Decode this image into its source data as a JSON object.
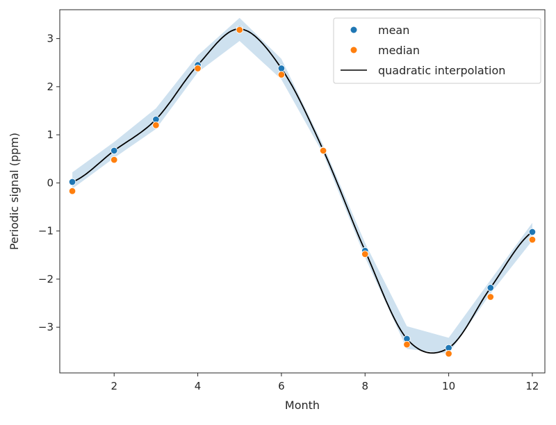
{
  "chart_data": {
    "type": "scatter",
    "xlabel": "Month",
    "ylabel": "Periodic signal (ppm)",
    "xlim": [
      0.7,
      12.3
    ],
    "ylim": [
      -3.95,
      3.6
    ],
    "xticks": [
      2,
      4,
      6,
      8,
      10,
      12
    ],
    "yticks": [
      -3,
      -2,
      -1,
      0,
      1,
      2,
      3
    ],
    "grid": false,
    "legend_position": "top-right",
    "series": [
      {
        "name": "mean",
        "kind": "points",
        "color": "#1f77b4",
        "x": [
          1,
          2,
          3,
          4,
          5,
          6,
          7,
          8,
          9,
          10,
          11,
          12
        ],
        "y": [
          0.02,
          0.67,
          1.32,
          2.45,
          3.2,
          2.38,
          0.68,
          -1.41,
          -3.24,
          -3.43,
          -2.18,
          -1.02
        ]
      },
      {
        "name": "median",
        "kind": "points",
        "color": "#ff7f0e",
        "x": [
          1,
          2,
          3,
          4,
          5,
          6,
          7,
          8,
          9,
          10,
          11,
          12
        ],
        "y": [
          -0.17,
          0.48,
          1.2,
          2.38,
          3.18,
          2.25,
          0.67,
          -1.48,
          -3.36,
          -3.55,
          -2.37,
          -1.18
        ]
      },
      {
        "name": "quadratic interpolation",
        "kind": "line",
        "color": "#000000",
        "x": [
          1,
          2,
          3,
          4,
          5,
          6,
          7,
          8,
          9,
          10,
          11,
          12
        ],
        "y": [
          0.02,
          0.67,
          1.32,
          2.45,
          3.2,
          2.38,
          0.68,
          -1.41,
          -3.24,
          -3.43,
          -2.18,
          -1.02
        ]
      }
    ],
    "band": {
      "color": "#1f77b4",
      "opacity": 0.22,
      "x": [
        1,
        2,
        3,
        4,
        5,
        6,
        7,
        8,
        9,
        10,
        11,
        12
      ],
      "lower": [
        -0.12,
        0.52,
        1.12,
        2.3,
        2.95,
        2.15,
        0.6,
        -1.55,
        -3.45,
        -3.55,
        -2.3,
        -1.2
      ],
      "upper": [
        0.22,
        0.85,
        1.55,
        2.65,
        3.43,
        2.58,
        0.78,
        -1.25,
        -2.98,
        -3.22,
        -2.02,
        -0.83
      ]
    }
  }
}
